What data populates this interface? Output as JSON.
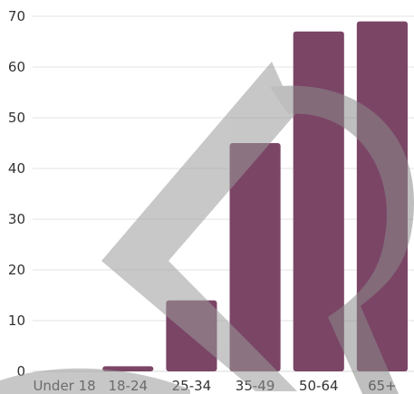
{
  "chart_data": {
    "type": "bar",
    "title": "",
    "xlabel": "",
    "ylabel": "",
    "categories": [
      "Under 18",
      "18-24",
      "25-34",
      "35-49",
      "50-64",
      "65+"
    ],
    "values": [
      0,
      1,
      14,
      45,
      67,
      69
    ],
    "ylim": [
      0,
      70
    ],
    "yticks": [
      0,
      10,
      20,
      30,
      40,
      50,
      60,
      70
    ],
    "grid": true,
    "legend": "none",
    "colors": {
      "bar": "#7b4566",
      "grid": "#e3e3e3",
      "text": "#333333",
      "watermark": "#9a9a9a"
    }
  }
}
